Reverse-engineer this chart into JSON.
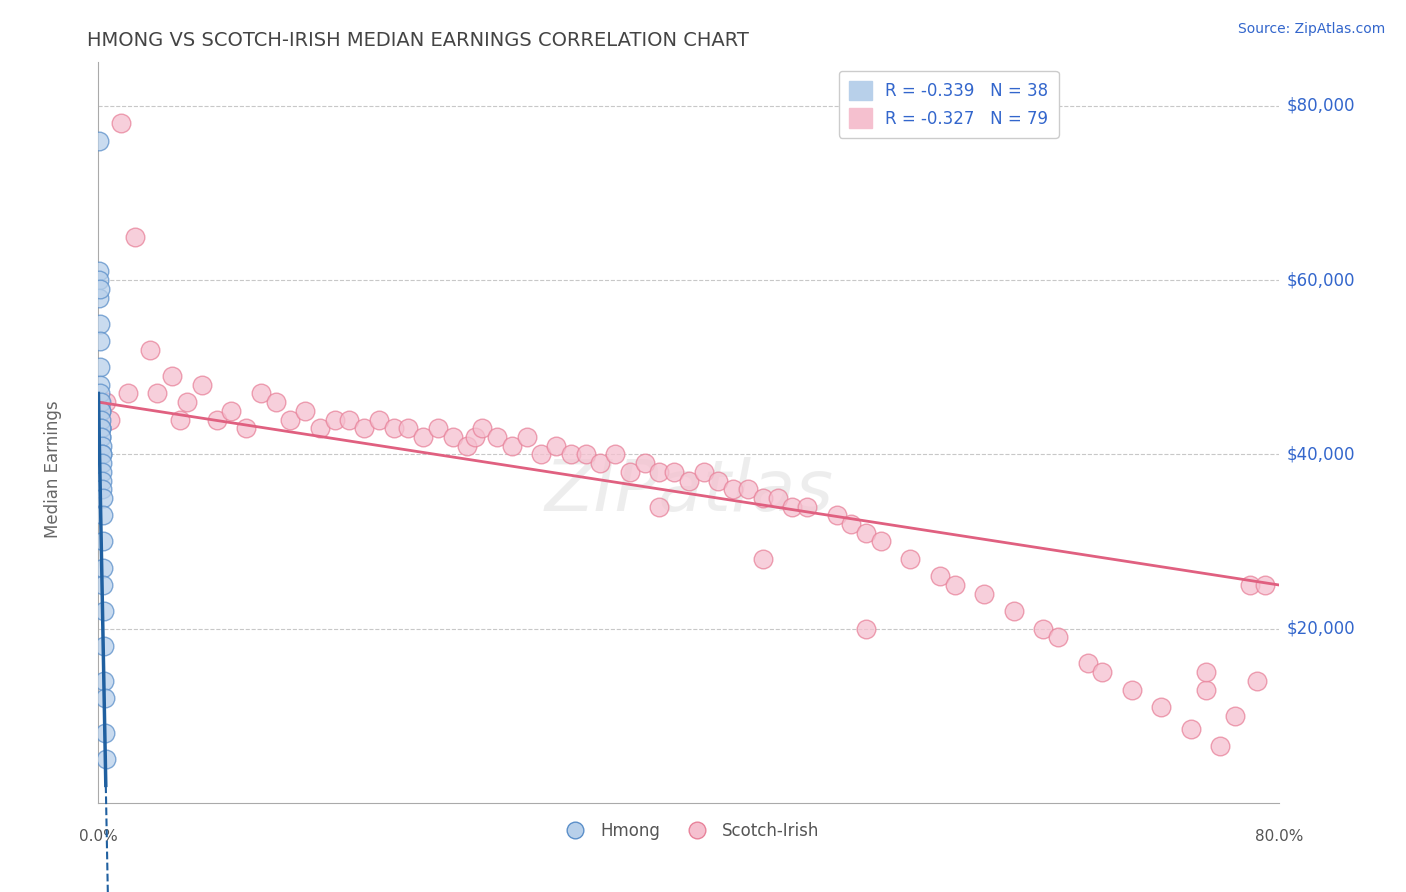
{
  "title": "HMONG VS SCOTCH-IRISH MEDIAN EARNINGS CORRELATION CHART",
  "source": "Source: ZipAtlas.com",
  "ylabel": "Median Earnings",
  "ytick_labels": [
    "$20,000",
    "$40,000",
    "$60,000",
    "$80,000"
  ],
  "ytick_values": [
    20000,
    40000,
    60000,
    80000
  ],
  "xlim": [
    0.0,
    80.0
  ],
  "ylim": [
    0,
    85000
  ],
  "ymin_display": 0,
  "legend_hmong": "R = -0.339   N = 38",
  "legend_scotch": "R = -0.327   N = 79",
  "hmong_color": "#b8d0ea",
  "scotch_color": "#f5c0cf",
  "hmong_edge_color": "#5b8fc9",
  "scotch_edge_color": "#e8829a",
  "hmong_line_color": "#2060a0",
  "scotch_line_color": "#e06080",
  "background_color": "#ffffff",
  "grid_color": "#c8c8c8",
  "title_color": "#444444",
  "source_color": "#3366cc",
  "legend_text_color": "#3366cc",
  "bottom_legend_color": "#555555",
  "hmong_x": [
    0.05,
    0.05,
    0.06,
    0.07,
    0.08,
    0.09,
    0.1,
    0.11,
    0.12,
    0.13,
    0.14,
    0.15,
    0.15,
    0.16,
    0.17,
    0.18,
    0.18,
    0.19,
    0.2,
    0.2,
    0.21,
    0.22,
    0.23,
    0.24,
    0.25,
    0.26,
    0.27,
    0.28,
    0.29,
    0.3,
    0.32,
    0.33,
    0.35,
    0.38,
    0.4,
    0.42,
    0.45,
    0.5
  ],
  "hmong_y": [
    76000,
    61000,
    60000,
    58000,
    59000,
    55000,
    53000,
    50000,
    48000,
    46000,
    47000,
    45000,
    46000,
    45000,
    43000,
    43000,
    44000,
    42000,
    43000,
    42000,
    41000,
    40000,
    40000,
    39000,
    38000,
    37000,
    36000,
    35000,
    33000,
    30000,
    27000,
    25000,
    22000,
    18000,
    14000,
    12000,
    8000,
    5000
  ],
  "scotch_x": [
    0.5,
    0.8,
    1.5,
    2.0,
    2.5,
    3.5,
    4.0,
    5.0,
    5.5,
    6.0,
    7.0,
    8.0,
    9.0,
    10.0,
    11.0,
    12.0,
    13.0,
    14.0,
    15.0,
    16.0,
    17.0,
    18.0,
    19.0,
    20.0,
    21.0,
    22.0,
    23.0,
    24.0,
    25.0,
    25.5,
    26.0,
    27.0,
    28.0,
    29.0,
    30.0,
    31.0,
    32.0,
    33.0,
    34.0,
    35.0,
    36.0,
    37.0,
    38.0,
    39.0,
    40.0,
    41.0,
    42.0,
    43.0,
    44.0,
    45.0,
    46.0,
    47.0,
    48.0,
    50.0,
    51.0,
    52.0,
    53.0,
    55.0,
    57.0,
    58.0,
    60.0,
    62.0,
    64.0,
    65.0,
    67.0,
    68.0,
    70.0,
    72.0,
    74.0,
    75.0,
    76.0,
    77.0,
    78.0,
    78.5,
    79.0,
    38.0,
    45.0,
    52.0,
    75.0
  ],
  "scotch_y": [
    46000,
    44000,
    78000,
    47000,
    65000,
    52000,
    47000,
    49000,
    44000,
    46000,
    48000,
    44000,
    45000,
    43000,
    47000,
    46000,
    44000,
    45000,
    43000,
    44000,
    44000,
    43000,
    44000,
    43000,
    43000,
    42000,
    43000,
    42000,
    41000,
    42000,
    43000,
    42000,
    41000,
    42000,
    40000,
    41000,
    40000,
    40000,
    39000,
    40000,
    38000,
    39000,
    38000,
    38000,
    37000,
    38000,
    37000,
    36000,
    36000,
    35000,
    35000,
    34000,
    34000,
    33000,
    32000,
    31000,
    30000,
    28000,
    26000,
    25000,
    24000,
    22000,
    20000,
    19000,
    16000,
    15000,
    13000,
    11000,
    8500,
    13000,
    6500,
    10000,
    25000,
    14000,
    25000,
    34000,
    28000,
    20000,
    15000
  ],
  "hmong_line_y0": 47000,
  "hmong_line_slope": -90000,
  "scotch_line_y0": 46000,
  "scotch_line_y80": 25000,
  "watermark": "ZIPatlas",
  "watermark_color": "#dddddd"
}
